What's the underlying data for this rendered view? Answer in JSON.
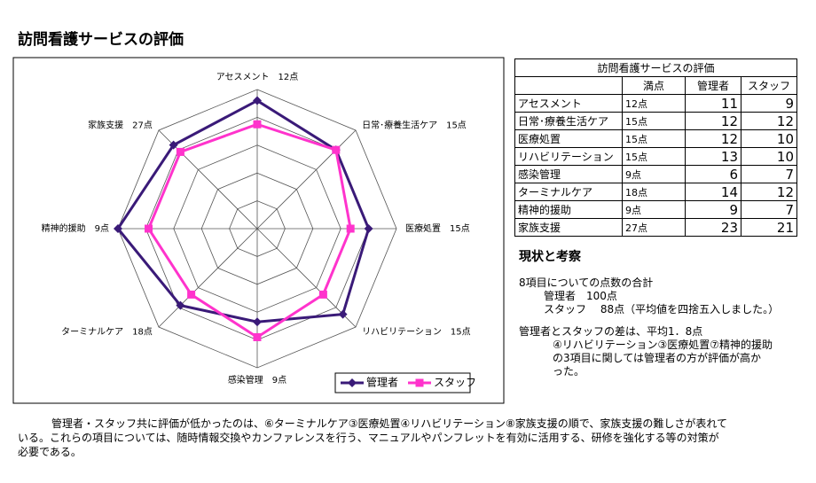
{
  "title": "訪問看護サービスの評価",
  "chart_data": {
    "type": "radar",
    "categories": [
      "アセスメント　12点",
      "日常･療養生活ケア　15点",
      "医療処置　15点",
      "リハビリテーション　15点",
      "感染管理　9点",
      "ターミナルケア　18点",
      "精神的援助　9点",
      "家族支援　27点"
    ],
    "series": [
      {
        "name": "管理者",
        "color": "#3a1a78",
        "marker": "diamond",
        "values": [
          0.92,
          0.8,
          0.8,
          0.87,
          0.67,
          0.78,
          1.0,
          0.85
        ]
      },
      {
        "name": "スタッフ",
        "color": "#ff33cc",
        "marker": "square",
        "values": [
          0.75,
          0.8,
          0.67,
          0.67,
          0.78,
          0.67,
          0.78,
          0.78
        ]
      }
    ],
    "rlim": [
      0,
      1
    ],
    "rticks": [
      0.2,
      0.4,
      0.6,
      0.8,
      1
    ],
    "grid": true
  },
  "table": {
    "title": "訪問看護サービスの評価",
    "header": [
      "満点",
      "管理者",
      "スタッフ"
    ],
    "rows": [
      [
        "アセスメント",
        "12点",
        11,
        9
      ],
      [
        "日常･療養生活ケア",
        "15点",
        12,
        12
      ],
      [
        "医療処置",
        "15点",
        12,
        10
      ],
      [
        "リハビリテーション",
        "15点",
        13,
        10
      ],
      [
        "感染管理",
        "9点",
        6,
        7
      ],
      [
        "ターミナルケア",
        "18点",
        14,
        12
      ],
      [
        "精神的援助",
        "9点",
        9,
        7
      ],
      [
        "家族支援",
        "27点",
        23,
        21
      ]
    ]
  },
  "discussion": {
    "heading": "現状と考察",
    "lines": [
      "8項目についての点数の合計",
      "管理者　100点",
      "スタッフ　 88点（平均値を四捨五入しました。）",
      "管理者とスタッフの差は、平均1．8点",
      "④リハビリテーション③医療処置⑦精神的援助",
      "の3項目に関しては管理者の方が評価が高か",
      "った。"
    ]
  },
  "summary": [
    "管理者・スタッフ共に評価が低かったのは、⑥ターミナルケア③医療処置④リハビリテーション⑧家族支援の順で、家族支援の難しさが表れて",
    "いる。これらの項目については、随時情報交換やカンファレンスを行う、マニュアルやパンフレットを有効に活用する、研修を強化する等の対策が",
    "必要である。"
  ]
}
